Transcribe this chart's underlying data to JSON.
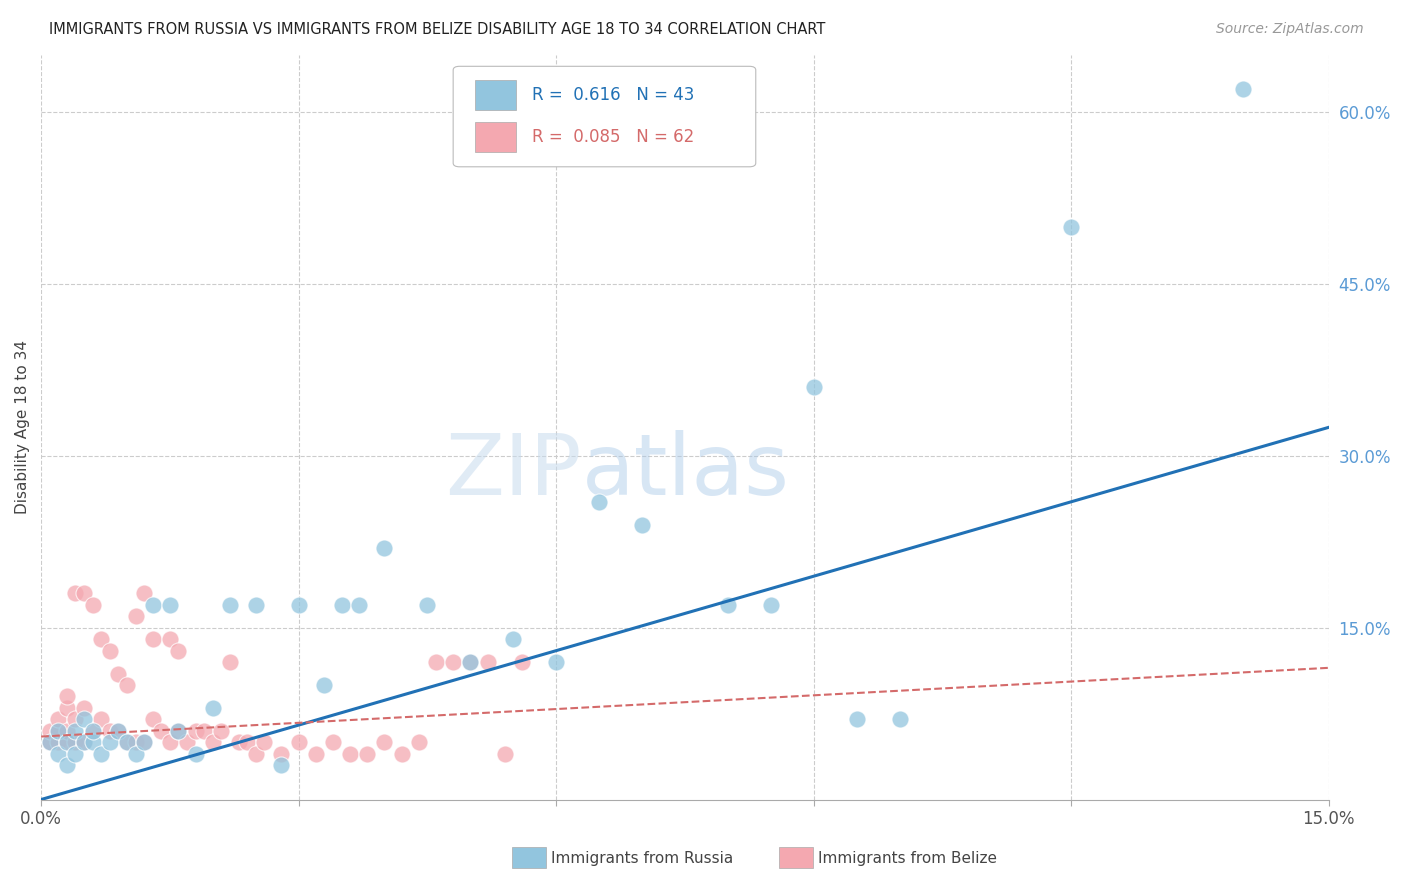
{
  "title": "IMMIGRANTS FROM RUSSIA VS IMMIGRANTS FROM BELIZE DISABILITY AGE 18 TO 34 CORRELATION CHART",
  "source": "Source: ZipAtlas.com",
  "ylabel": "Disability Age 18 to 34",
  "xlim": [
    0.0,
    0.15
  ],
  "ylim": [
    0.0,
    0.65
  ],
  "ytick_right": [
    0.15,
    0.3,
    0.45,
    0.6
  ],
  "ytick_right_labels": [
    "15.0%",
    "30.0%",
    "45.0%",
    "60.0%"
  ],
  "legend_russia_r": "0.616",
  "legend_russia_n": "43",
  "legend_belize_r": "0.085",
  "legend_belize_n": "62",
  "russia_color": "#92c5de",
  "belize_color": "#f4a8b0",
  "russia_line_color": "#2171b5",
  "belize_line_color": "#d46a6a",
  "grid_color": "#cccccc",
  "watermark_zip": "ZIP",
  "watermark_atlas": "atlas",
  "legend_label_russia": "Immigrants from Russia",
  "legend_label_belize": "Immigrants from Belize",
  "russia_scatter_x": [
    0.001,
    0.002,
    0.002,
    0.003,
    0.003,
    0.004,
    0.004,
    0.005,
    0.005,
    0.006,
    0.006,
    0.007,
    0.008,
    0.009,
    0.01,
    0.011,
    0.012,
    0.013,
    0.015,
    0.016,
    0.018,
    0.02,
    0.022,
    0.025,
    0.028,
    0.03,
    0.033,
    0.035,
    0.037,
    0.04,
    0.045,
    0.05,
    0.055,
    0.06,
    0.065,
    0.07,
    0.08,
    0.085,
    0.09,
    0.095,
    0.1,
    0.12,
    0.14
  ],
  "russia_scatter_y": [
    0.05,
    0.04,
    0.06,
    0.03,
    0.05,
    0.04,
    0.06,
    0.05,
    0.07,
    0.05,
    0.06,
    0.04,
    0.05,
    0.06,
    0.05,
    0.04,
    0.05,
    0.17,
    0.17,
    0.06,
    0.04,
    0.08,
    0.17,
    0.17,
    0.03,
    0.17,
    0.1,
    0.17,
    0.17,
    0.22,
    0.17,
    0.12,
    0.14,
    0.12,
    0.26,
    0.24,
    0.17,
    0.17,
    0.36,
    0.07,
    0.07,
    0.5,
    0.62
  ],
  "belize_scatter_x": [
    0.001,
    0.001,
    0.001,
    0.002,
    0.002,
    0.002,
    0.003,
    0.003,
    0.003,
    0.003,
    0.004,
    0.004,
    0.004,
    0.005,
    0.005,
    0.005,
    0.006,
    0.006,
    0.007,
    0.007,
    0.008,
    0.008,
    0.009,
    0.009,
    0.01,
    0.01,
    0.011,
    0.011,
    0.012,
    0.012,
    0.013,
    0.013,
    0.014,
    0.015,
    0.015,
    0.016,
    0.016,
    0.017,
    0.018,
    0.019,
    0.02,
    0.021,
    0.022,
    0.023,
    0.024,
    0.025,
    0.026,
    0.028,
    0.03,
    0.032,
    0.034,
    0.036,
    0.038,
    0.04,
    0.042,
    0.044,
    0.046,
    0.048,
    0.05,
    0.052,
    0.054,
    0.056
  ],
  "belize_scatter_y": [
    0.05,
    0.05,
    0.06,
    0.05,
    0.06,
    0.07,
    0.05,
    0.06,
    0.08,
    0.09,
    0.05,
    0.07,
    0.18,
    0.05,
    0.08,
    0.18,
    0.06,
    0.17,
    0.07,
    0.14,
    0.06,
    0.13,
    0.06,
    0.11,
    0.05,
    0.1,
    0.05,
    0.16,
    0.05,
    0.18,
    0.07,
    0.14,
    0.06,
    0.05,
    0.14,
    0.06,
    0.13,
    0.05,
    0.06,
    0.06,
    0.05,
    0.06,
    0.12,
    0.05,
    0.05,
    0.04,
    0.05,
    0.04,
    0.05,
    0.04,
    0.05,
    0.04,
    0.04,
    0.05,
    0.04,
    0.05,
    0.12,
    0.12,
    0.12,
    0.12,
    0.04,
    0.12
  ],
  "russia_line_x0": 0.0,
  "russia_line_y0": 0.0,
  "russia_line_x1": 0.15,
  "russia_line_y1": 0.325,
  "belize_line_x0": 0.0,
  "belize_line_y0": 0.055,
  "belize_line_x1": 0.15,
  "belize_line_y1": 0.115
}
